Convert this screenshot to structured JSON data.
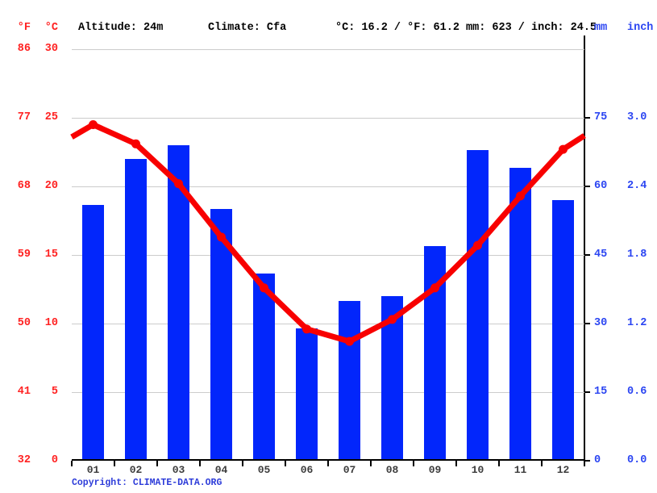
{
  "header": {
    "deg_f": "°F",
    "deg_c": "°C",
    "altitude": "Altitude: 24m",
    "climate": "Climate: Cfa",
    "temp_summary": "°C: 16.2 / °F: 61.2",
    "precip_summary": "mm: 623 / inch: 24.5",
    "mm": "mm",
    "inch": "inch"
  },
  "colors": {
    "bar": "#0226fb",
    "line": "#f80000",
    "temp_axis_text": "#ff2222",
    "precip_axis_text": "#2b45f2",
    "grid": "#cccccc",
    "axis": "#000000",
    "month_text": "#3c3c3c",
    "copyright_text": "#2c3bd9"
  },
  "axes": {
    "left_f_ticks": [
      "86",
      "77",
      "68",
      "59",
      "50",
      "41",
      "32"
    ],
    "left_c_ticks": [
      "30",
      "25",
      "20",
      "15",
      "10",
      "5",
      "0"
    ],
    "left_c_values": [
      30,
      25,
      20,
      15,
      10,
      5,
      0
    ],
    "right_mm_ticks": [
      "75",
      "60",
      "45",
      "30",
      "15",
      "0"
    ],
    "right_mm_values": [
      75,
      60,
      45,
      30,
      15,
      0
    ],
    "right_inch_ticks": [
      "3.0",
      "2.4",
      "1.8",
      "1.2",
      "0.6",
      "0.0"
    ]
  },
  "chart_data": [
    {
      "type": "bar",
      "name": "precipitation",
      "categories": [
        "01",
        "02",
        "03",
        "04",
        "05",
        "06",
        "07",
        "08",
        "09",
        "10",
        "11",
        "12"
      ],
      "values": [
        56,
        66,
        69,
        55,
        41,
        29,
        35,
        36,
        47,
        68,
        64,
        57
      ],
      "ylabel": "mm",
      "ylim": [
        0,
        90
      ],
      "yticks_mm": [
        0,
        15,
        30,
        45,
        60,
        75
      ],
      "yticks_inch": [
        0.0,
        0.6,
        1.2,
        1.8,
        2.4,
        3.0
      ],
      "annual_total_mm": 623,
      "annual_total_inch": 24.5,
      "legend_position": "none",
      "grid": true
    },
    {
      "type": "line",
      "name": "temperature",
      "categories": [
        "01",
        "02",
        "03",
        "04",
        "05",
        "06",
        "07",
        "08",
        "09",
        "10",
        "11",
        "12"
      ],
      "values": [
        24.5,
        23.1,
        20.2,
        16.3,
        12.6,
        9.6,
        8.7,
        10.3,
        12.6,
        15.7,
        19.3,
        22.7
      ],
      "edge_values_c": [
        23.6,
        23.7
      ],
      "ylabel": "°C",
      "ylim": [
        0,
        30
      ],
      "yticks_c": [
        0,
        5,
        10,
        15,
        20,
        25,
        30
      ],
      "yticks_f": [
        32,
        41,
        50,
        59,
        68,
        77,
        86
      ],
      "annual_mean_c": 16.2,
      "annual_mean_f": 61.2,
      "legend_position": "none",
      "grid": true
    }
  ],
  "footer": {
    "copyright_prefix": "Copyright: ",
    "copyright_link": "CLIMATE-DATA.ORG"
  }
}
